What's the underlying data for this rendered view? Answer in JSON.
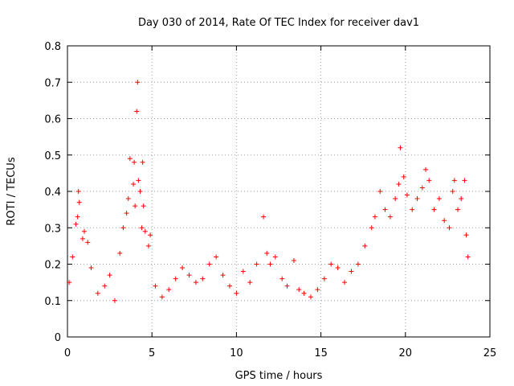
{
  "chart_data": {
    "type": "scatter",
    "title": "Day 030 of 2014, Rate Of TEC Index for receiver dav1",
    "xlabel": "GPS time / hours",
    "ylabel": "ROTI / TECUs",
    "xlim": [
      0,
      25
    ],
    "ylim": [
      0,
      0.8
    ],
    "xticks": [
      0,
      5,
      10,
      15,
      20,
      25
    ],
    "yticks": [
      0,
      0.1,
      0.2,
      0.3,
      0.4,
      0.5,
      0.6,
      0.7,
      0.8
    ],
    "grid": true,
    "marker": "+",
    "series": [
      {
        "name": "dav1",
        "color": "#ff0000",
        "points": [
          [
            0.1,
            0.15
          ],
          [
            0.3,
            0.22
          ],
          [
            0.5,
            0.31
          ],
          [
            0.6,
            0.33
          ],
          [
            0.65,
            0.4
          ],
          [
            0.7,
            0.37
          ],
          [
            0.9,
            0.27
          ],
          [
            1.0,
            0.29
          ],
          [
            1.2,
            0.26
          ],
          [
            1.4,
            0.19
          ],
          [
            1.8,
            0.12
          ],
          [
            2.2,
            0.14
          ],
          [
            2.5,
            0.17
          ],
          [
            2.8,
            0.1
          ],
          [
            3.1,
            0.23
          ],
          [
            3.3,
            0.3
          ],
          [
            3.5,
            0.34
          ],
          [
            3.6,
            0.38
          ],
          [
            3.7,
            0.49
          ],
          [
            3.9,
            0.42
          ],
          [
            3.95,
            0.48
          ],
          [
            4.0,
            0.36
          ],
          [
            4.1,
            0.62
          ],
          [
            4.15,
            0.7
          ],
          [
            4.2,
            0.43
          ],
          [
            4.3,
            0.4
          ],
          [
            4.4,
            0.3
          ],
          [
            4.45,
            0.48
          ],
          [
            4.5,
            0.36
          ],
          [
            4.6,
            0.29
          ],
          [
            4.8,
            0.25
          ],
          [
            4.9,
            0.28
          ],
          [
            5.2,
            0.14
          ],
          [
            5.6,
            0.11
          ],
          [
            6.0,
            0.13
          ],
          [
            6.4,
            0.16
          ],
          [
            6.8,
            0.19
          ],
          [
            7.2,
            0.17
          ],
          [
            7.6,
            0.15
          ],
          [
            8.0,
            0.16
          ],
          [
            8.4,
            0.2
          ],
          [
            8.8,
            0.22
          ],
          [
            9.2,
            0.17
          ],
          [
            9.6,
            0.14
          ],
          [
            10.0,
            0.12
          ],
          [
            10.4,
            0.18
          ],
          [
            10.8,
            0.15
          ],
          [
            11.2,
            0.2
          ],
          [
            11.6,
            0.33
          ],
          [
            11.8,
            0.23
          ],
          [
            12.0,
            0.2
          ],
          [
            12.3,
            0.22
          ],
          [
            12.7,
            0.16
          ],
          [
            13.0,
            0.14
          ],
          [
            13.4,
            0.21
          ],
          [
            13.7,
            0.13
          ],
          [
            14.0,
            0.12
          ],
          [
            14.4,
            0.11
          ],
          [
            14.8,
            0.13
          ],
          [
            15.2,
            0.16
          ],
          [
            15.6,
            0.2
          ],
          [
            16.0,
            0.19
          ],
          [
            16.4,
            0.15
          ],
          [
            16.8,
            0.18
          ],
          [
            17.2,
            0.2
          ],
          [
            17.6,
            0.25
          ],
          [
            18.0,
            0.3
          ],
          [
            18.2,
            0.33
          ],
          [
            18.5,
            0.4
          ],
          [
            18.8,
            0.35
          ],
          [
            19.1,
            0.33
          ],
          [
            19.4,
            0.38
          ],
          [
            19.6,
            0.42
          ],
          [
            19.7,
            0.52
          ],
          [
            19.9,
            0.44
          ],
          [
            20.1,
            0.39
          ],
          [
            20.4,
            0.35
          ],
          [
            20.7,
            0.38
          ],
          [
            21.0,
            0.41
          ],
          [
            21.2,
            0.46
          ],
          [
            21.4,
            0.43
          ],
          [
            21.7,
            0.35
          ],
          [
            22.0,
            0.38
          ],
          [
            22.3,
            0.32
          ],
          [
            22.6,
            0.3
          ],
          [
            22.8,
            0.4
          ],
          [
            22.9,
            0.43
          ],
          [
            23.1,
            0.35
          ],
          [
            23.3,
            0.38
          ],
          [
            23.5,
            0.43
          ],
          [
            23.6,
            0.28
          ],
          [
            23.7,
            0.22
          ]
        ]
      }
    ]
  }
}
